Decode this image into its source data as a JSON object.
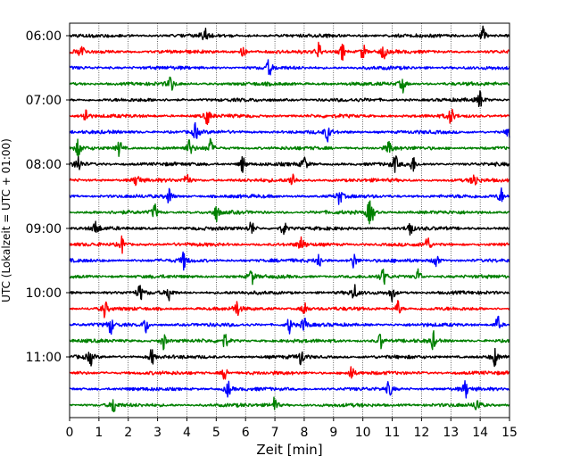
{
  "chart_data": {
    "type": "line",
    "title": "",
    "xlabel": "Zeit  [min]",
    "ylabel": "UTC (Lokalzeit = UTC + 01:00)",
    "xlim": [
      0,
      15
    ],
    "x_ticks": [
      "0",
      "1",
      "2",
      "3",
      "4",
      "5",
      "6",
      "7",
      "8",
      "9",
      "10",
      "11",
      "12",
      "13",
      "14",
      "15"
    ],
    "y_ticks": [
      "06:00",
      "07:00",
      "08:00",
      "09:00",
      "10:00",
      "11:00"
    ],
    "grid": "vertical dotted lines at each minute",
    "legend": "none",
    "trace_colors": [
      "#000000",
      "#ff0000",
      "#0000ff",
      "#008000"
    ],
    "traces": [
      {
        "start": "06:00",
        "color": "#000000",
        "events": [
          4.6,
          14.1
        ]
      },
      {
        "start": "06:15",
        "color": "#ff0000",
        "events": [
          0.4,
          5.9,
          8.5,
          9.3,
          10.0,
          10.7
        ]
      },
      {
        "start": "06:30",
        "color": "#0000ff",
        "events": [
          6.8
        ]
      },
      {
        "start": "06:45",
        "color": "#008000",
        "events": [
          3.45,
          11.35
        ]
      },
      {
        "start": "07:00",
        "color": "#000000",
        "events": [
          14.0
        ]
      },
      {
        "start": "07:15",
        "color": "#ff0000",
        "events": [
          0.55,
          4.7,
          13.0
        ]
      },
      {
        "start": "07:30",
        "color": "#0000ff",
        "events": [
          4.3,
          8.8,
          15.0
        ]
      },
      {
        "start": "07:45",
        "color": "#008000",
        "events": [
          0.3,
          1.7,
          4.1,
          4.8,
          10.9
        ]
      },
      {
        "start": "08:00",
        "color": "#000000",
        "events": [
          0.3,
          5.9,
          8.0,
          11.1,
          11.7
        ]
      },
      {
        "start": "08:15",
        "color": "#ff0000",
        "events": [
          2.3,
          4.0,
          7.6,
          13.8
        ]
      },
      {
        "start": "08:30",
        "color": "#0000ff",
        "events": [
          3.4,
          9.2,
          14.7
        ]
      },
      {
        "start": "08:45",
        "color": "#008000",
        "events": [
          2.9,
          5.0,
          10.2,
          10.3
        ]
      },
      {
        "start": "09:00",
        "color": "#000000",
        "events": [
          0.9,
          6.2,
          7.3,
          11.6
        ]
      },
      {
        "start": "09:15",
        "color": "#ff0000",
        "events": [
          1.8,
          7.9,
          12.2
        ]
      },
      {
        "start": "09:30",
        "color": "#0000ff",
        "events": [
          3.9,
          8.5,
          9.7,
          12.5
        ]
      },
      {
        "start": "09:45",
        "color": "#008000",
        "events": [
          6.2,
          10.7,
          11.9
        ]
      },
      {
        "start": "10:00",
        "color": "#000000",
        "events": [
          2.4,
          3.4,
          9.7,
          11.0
        ]
      },
      {
        "start": "10:15",
        "color": "#ff0000",
        "events": [
          1.2,
          5.7,
          8.0,
          11.2
        ]
      },
      {
        "start": "10:30",
        "color": "#0000ff",
        "events": [
          1.4,
          2.6,
          7.5,
          8.0,
          14.6
        ]
      },
      {
        "start": "10:45",
        "color": "#008000",
        "events": [
          3.2,
          5.3,
          10.6,
          12.4
        ]
      },
      {
        "start": "11:00",
        "color": "#000000",
        "events": [
          0.7,
          2.8,
          7.9,
          14.5
        ]
      },
      {
        "start": "11:15",
        "color": "#ff0000",
        "events": [
          5.3,
          9.6
        ]
      },
      {
        "start": "11:30",
        "color": "#0000ff",
        "events": [
          5.4,
          10.9,
          13.5
        ]
      },
      {
        "start": "11:45",
        "color": "#008000",
        "events": [
          1.5,
          7.0,
          13.9
        ]
      }
    ]
  }
}
